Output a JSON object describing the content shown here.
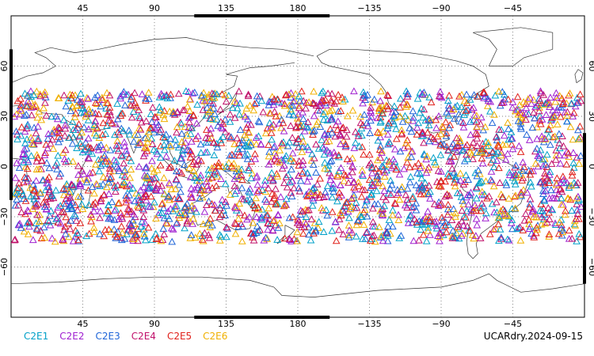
{
  "map": {
    "lon_ticks_top": [
      "45",
      "90",
      "135",
      "180",
      "−135",
      "−90",
      "−45"
    ],
    "lon_ticks_bottom": [
      "45",
      "90",
      "135",
      "180",
      "−135",
      "−90",
      "−45"
    ],
    "lat_ticks_left": [
      "60",
      "30",
      "0",
      "−30",
      "−60"
    ],
    "lat_ticks_right": [
      "60",
      "30",
      "0",
      "−30",
      "−60"
    ],
    "lon_range": [
      0,
      360
    ],
    "lat_range": [
      -90,
      90
    ],
    "grid": "dotted"
  },
  "legend": {
    "items": [
      {
        "label": "C2E1",
        "color": "#00a0c8"
      },
      {
        "label": "C2E2",
        "color": "#a020d0"
      },
      {
        "label": "C2E3",
        "color": "#1e64d8"
      },
      {
        "label": "C2E4",
        "color": "#c0106a"
      },
      {
        "label": "C2E5",
        "color": "#e0201a"
      },
      {
        "label": "C2E6",
        "color": "#f0b000"
      }
    ]
  },
  "stamp": "UCARdry.2024-09-15",
  "observations": {
    "symbol": "triangle",
    "lat_band": [
      -45,
      45
    ]
  }
}
